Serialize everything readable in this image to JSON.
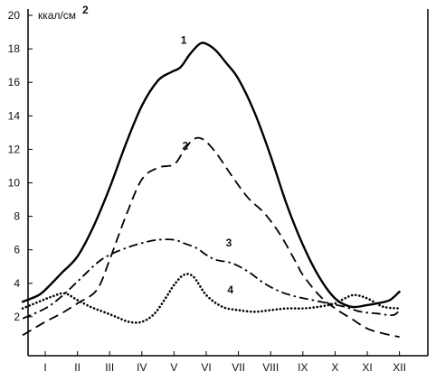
{
  "chart_data": {
    "type": "line",
    "ylabel": "ккал/см",
    "ylabel_superscript": "2",
    "ylim": [
      0,
      20
    ],
    "yticks": [
      "2",
      "4",
      "6",
      "8",
      "10",
      "12",
      "14",
      "16",
      "18",
      "20"
    ],
    "categories": [
      "I",
      "II",
      "III",
      "IV",
      "V",
      "VI",
      "VII",
      "VIII",
      "IX",
      "X",
      "XI",
      "XII"
    ],
    "grid": false,
    "series": [
      {
        "name": "1",
        "style": "solid",
        "x": [
          0.3,
          0.8,
          1.1,
          1.5,
          2.0,
          2.5,
          3.0,
          3.5,
          4.0,
          4.5,
          4.9,
          5.2,
          5.5,
          5.8,
          6.0,
          6.3,
          6.6,
          7.0,
          7.5,
          8.0,
          8.5,
          9.0,
          9.5,
          10.0,
          10.5,
          11.0,
          11.3,
          11.7,
          12.0
        ],
        "values": [
          2.9,
          3.3,
          3.8,
          4.6,
          5.6,
          7.4,
          9.7,
          12.3,
          14.6,
          16.1,
          16.6,
          16.9,
          17.7,
          18.3,
          18.3,
          17.9,
          17.2,
          16.2,
          14.2,
          11.6,
          8.7,
          6.3,
          4.4,
          3.1,
          2.6,
          2.7,
          2.8,
          3.0,
          3.5
        ]
      },
      {
        "name": "2",
        "style": "dashed",
        "x": [
          0.3,
          1.0,
          1.5,
          2.0,
          2.6,
          3.0,
          3.5,
          4.0,
          4.5,
          5.0,
          5.3,
          5.6,
          5.9,
          6.3,
          6.8,
          7.3,
          7.8,
          8.3,
          8.8,
          9.0,
          9.5,
          10.0,
          10.5,
          11.0,
          11.5,
          12.0
        ],
        "values": [
          0.9,
          1.7,
          2.2,
          2.8,
          3.6,
          5.4,
          8.0,
          10.2,
          10.9,
          11.1,
          11.9,
          12.6,
          12.6,
          11.8,
          10.4,
          9.1,
          8.2,
          6.9,
          5.2,
          4.5,
          3.3,
          2.5,
          1.9,
          1.3,
          1.0,
          0.8
        ]
      },
      {
        "name": "3",
        "style": "dash-dot",
        "x": [
          0.3,
          1.0,
          1.5,
          2.0,
          2.6,
          3.0,
          3.5,
          4.0,
          4.5,
          5.0,
          5.3,
          5.7,
          6.0,
          6.3,
          6.8,
          7.3,
          7.8,
          8.3,
          8.8,
          9.3,
          9.8,
          10.3,
          10.8,
          11.3,
          11.8,
          12.0
        ],
        "values": [
          1.9,
          2.5,
          3.2,
          4.1,
          5.2,
          5.7,
          6.1,
          6.4,
          6.6,
          6.6,
          6.4,
          6.1,
          5.7,
          5.4,
          5.2,
          4.7,
          4.0,
          3.5,
          3.2,
          3.0,
          2.8,
          2.6,
          2.3,
          2.2,
          2.1,
          2.4
        ]
      },
      {
        "name": "4",
        "style": "dotted",
        "x": [
          0.3,
          0.8,
          1.2,
          1.6,
          2.0,
          2.4,
          2.8,
          3.2,
          3.6,
          4.0,
          4.4,
          4.8,
          5.0,
          5.3,
          5.6,
          6.0,
          6.5,
          7.0,
          7.5,
          8.0,
          8.5,
          9.0,
          9.5,
          10.0,
          10.3,
          10.6,
          11.0,
          11.5,
          12.0
        ],
        "values": [
          2.5,
          2.9,
          3.2,
          3.4,
          3.0,
          2.6,
          2.3,
          2.0,
          1.7,
          1.7,
          2.2,
          3.3,
          3.9,
          4.5,
          4.4,
          3.3,
          2.6,
          2.4,
          2.3,
          2.4,
          2.5,
          2.5,
          2.6,
          2.8,
          3.1,
          3.3,
          3.1,
          2.6,
          2.5
        ]
      }
    ],
    "series_label_anchors": [
      {
        "name": "1",
        "x": 5.3,
        "y": 18.3
      },
      {
        "name": "2",
        "x": 5.35,
        "y": 12.0
      },
      {
        "name": "3",
        "x": 6.7,
        "y": 6.2
      },
      {
        "name": "4",
        "x": 6.75,
        "y": 3.4
      }
    ]
  }
}
